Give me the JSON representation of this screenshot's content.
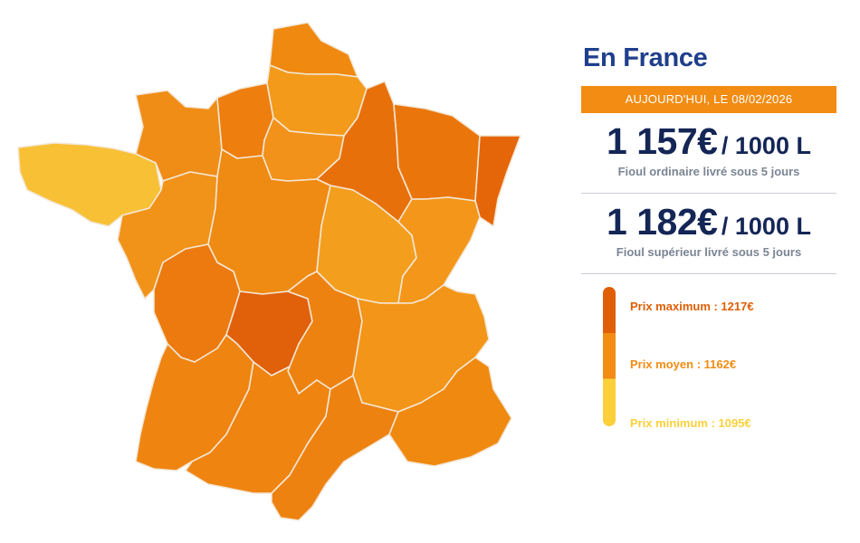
{
  "map": {
    "regions": [
      {
        "id": "bretagne",
        "color": "#f8c035"
      },
      {
        "id": "normandie-ouest",
        "color": "#f08d16"
      },
      {
        "id": "normandie-est",
        "color": "#ee7e0e"
      },
      {
        "id": "nord",
        "color": "#ef8910"
      },
      {
        "id": "picardie",
        "color": "#f39a1a"
      },
      {
        "id": "ile-de-france",
        "color": "#f2921a"
      },
      {
        "id": "champagne",
        "color": "#e8700a"
      },
      {
        "id": "lorraine",
        "color": "#ea760b"
      },
      {
        "id": "alsace",
        "color": "#e56608"
      },
      {
        "id": "pays-de-la-loire",
        "color": "#f19219"
      },
      {
        "id": "centre",
        "color": "#ef8a12"
      },
      {
        "id": "bourgogne",
        "color": "#f49e1d"
      },
      {
        "id": "franche-comte",
        "color": "#f3961a"
      },
      {
        "id": "poitou-charentes",
        "color": "#ec7a0e"
      },
      {
        "id": "limousin",
        "color": "#e1600a"
      },
      {
        "id": "auvergne",
        "color": "#ee8210"
      },
      {
        "id": "rhone-alpes",
        "color": "#f29518"
      },
      {
        "id": "aquitaine",
        "color": "#ef8410"
      },
      {
        "id": "midi-pyrenees",
        "color": "#ef8410"
      },
      {
        "id": "languedoc",
        "color": "#ee8210"
      },
      {
        "id": "paca",
        "color": "#f08910"
      }
    ]
  },
  "panel": {
    "title": "En France",
    "date_label": "AUJOURD'HUI, LE 08/02/2026",
    "ordinary": {
      "price": "1 157€",
      "unit": "/ 1000 L",
      "caption": "Fioul ordinaire livré sous 5 jours"
    },
    "superior": {
      "price": "1 182€",
      "unit": "/ 1000 L",
      "caption": "Fioul supérieur livré sous 5 jours"
    },
    "legend": {
      "max": {
        "label": "Prix maximum : 1217€",
        "color": "#df5e06"
      },
      "avg": {
        "label": "Prix moyen : 1162€",
        "color": "#f28c13"
      },
      "min": {
        "label": "Prix minimum : 1095€",
        "color": "#fbd03a"
      }
    },
    "colors": {
      "title": "#1f3f8c",
      "price": "#142656",
      "badge": "#f28c13",
      "caption": "#7b8594"
    }
  }
}
